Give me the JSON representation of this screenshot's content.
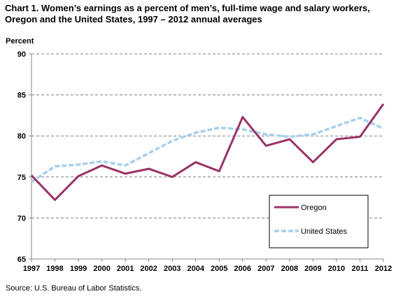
{
  "chart_data": {
    "type": "line",
    "title_lines": [
      "Chart 1. Women’s earnings as a percent of men’s, full-time wage and salary workers,",
      "Oregon and the United States, 1997 – 2012 annual averages"
    ],
    "ylabel": "Percent",
    "xlabel": "",
    "ylim": [
      65,
      90
    ],
    "yticks": [
      65,
      70,
      75,
      80,
      85,
      90
    ],
    "grid": true,
    "legend_position": "bottom-right",
    "x": [
      "1997",
      "1998",
      "1999",
      "2000",
      "2001",
      "2002",
      "2003",
      "2004",
      "2005",
      "2006",
      "2007",
      "2008",
      "2009",
      "2010",
      "2011",
      "2012"
    ],
    "series": [
      {
        "name": "Oregon",
        "color": "#993366",
        "style": "solid",
        "values": [
          75.2,
          72.2,
          75.1,
          76.4,
          75.4,
          76.0,
          75.0,
          76.8,
          75.7,
          82.3,
          78.8,
          79.6,
          76.8,
          79.6,
          79.9,
          83.9
        ]
      },
      {
        "name": "United States",
        "color": "#a8d0ec",
        "style": "dashed",
        "values": [
          74.4,
          76.3,
          76.5,
          76.9,
          76.4,
          77.9,
          79.4,
          80.4,
          81.0,
          80.8,
          80.2,
          79.9,
          80.2,
          81.2,
          82.2,
          80.9
        ]
      }
    ]
  },
  "source": "Source: U.S.  Bureau of Labor Statistics."
}
